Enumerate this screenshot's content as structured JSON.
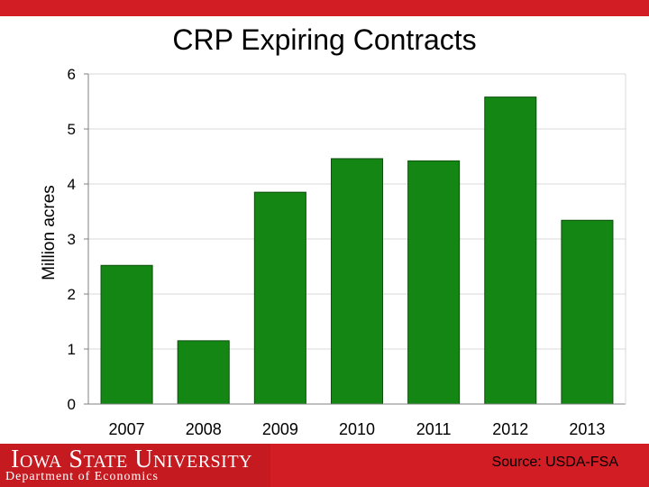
{
  "header": {
    "accent_color": "#d21d24"
  },
  "chart_data": {
    "type": "bar",
    "title": "CRP Expiring Contracts",
    "xlabel": "",
    "ylabel": "Million acres",
    "categories": [
      "2007",
      "2008",
      "2009",
      "2010",
      "2011",
      "2012",
      "2013"
    ],
    "values": [
      2.52,
      1.15,
      3.85,
      4.46,
      4.42,
      5.58,
      3.34
    ],
    "ylim": [
      0,
      6
    ],
    "yticks": [
      "0",
      "1",
      "2",
      "3",
      "4",
      "5",
      "6"
    ],
    "bar_color": "#138613",
    "grid": true
  },
  "footer": {
    "university": "Iowa State University",
    "department": "Department of Economics",
    "source": "Source: USDA-FSA"
  }
}
